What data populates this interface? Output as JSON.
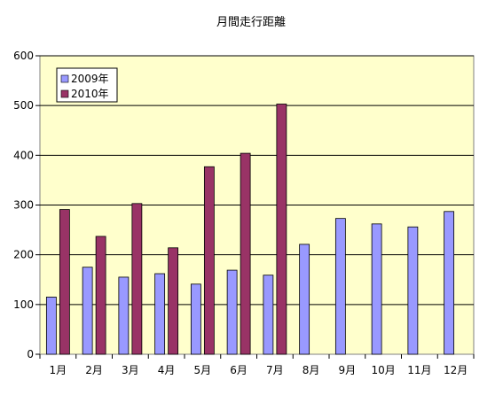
{
  "chart_data": {
    "type": "bar",
    "title": "月間走行距離",
    "xlabel": "",
    "ylabel": "",
    "categories": [
      "1月",
      "2月",
      "3月",
      "4月",
      "5月",
      "6月",
      "7月",
      "8月",
      "9月",
      "10月",
      "11月",
      "12月"
    ],
    "series": [
      {
        "name": "2009年",
        "color": "#9999ff",
        "values": [
          115,
          175,
          155,
          162,
          141,
          169,
          159,
          221,
          273,
          262,
          256,
          287
        ]
      },
      {
        "name": "2010年",
        "color": "#993366",
        "values": [
          291,
          237,
          303,
          214,
          377,
          404,
          503,
          null,
          null,
          null,
          null,
          null
        ]
      }
    ],
    "ylim": [
      0,
      600
    ],
    "yticks": [
      0,
      100,
      200,
      300,
      400,
      500,
      600
    ],
    "grid": true,
    "legend_position": "top-left",
    "plot_background": "#ffffcc"
  }
}
